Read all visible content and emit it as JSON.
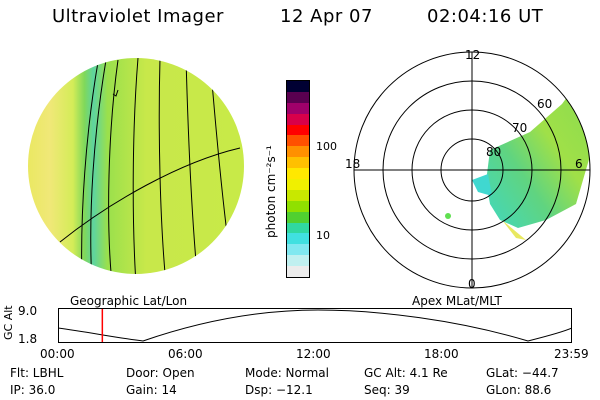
{
  "header": {
    "title": "Ultraviolet Imager",
    "date": "12 Apr 07",
    "time": "02:04:16 UT"
  },
  "colorbar": {
    "unit_label": "photon cm⁻²s⁻¹",
    "tick_100": "100",
    "tick_10": "10",
    "colors": [
      "#000033",
      "#5a0050",
      "#a0006a",
      "#d8004a",
      "#ff0000",
      "#ff5000",
      "#ff9000",
      "#ffc000",
      "#ffe800",
      "#f0f000",
      "#c8e800",
      "#90e000",
      "#50d030",
      "#30d8a0",
      "#40e0e0",
      "#80e8f0",
      "#c0f0f0",
      "#ececec"
    ]
  },
  "left_panel": {
    "label": "Geographic Lat/Lon"
  },
  "polar_panel": {
    "label": "Apex MLat/MLT",
    "hour_12": "12",
    "hour_18": "18",
    "hour_6": "6",
    "hour_0": "0",
    "lat_60": "60",
    "lat_70": "70",
    "lat_80": "80"
  },
  "altitude_strip": {
    "axis_label": "GC Alt",
    "y_top": "9.0",
    "y_bottom": "1.8",
    "x_ticks": [
      "00:00",
      "06:00",
      "12:00",
      "18:00",
      "23:59"
    ],
    "marker_time_hours": 2.07,
    "line_color": "#ff0000"
  },
  "info": {
    "flt": "Flt: LBHL",
    "door": "Door: Open",
    "mode": "Mode: Normal",
    "gc_alt": "GC Alt: 4.1 Re",
    "glat": "GLat: −44.7",
    "ip": "IP: 36.0",
    "gain": "Gain: 14",
    "dsp": "Dsp:  −12.1",
    "seq": "Seq: 39",
    "glon": "GLon:  88.6"
  }
}
